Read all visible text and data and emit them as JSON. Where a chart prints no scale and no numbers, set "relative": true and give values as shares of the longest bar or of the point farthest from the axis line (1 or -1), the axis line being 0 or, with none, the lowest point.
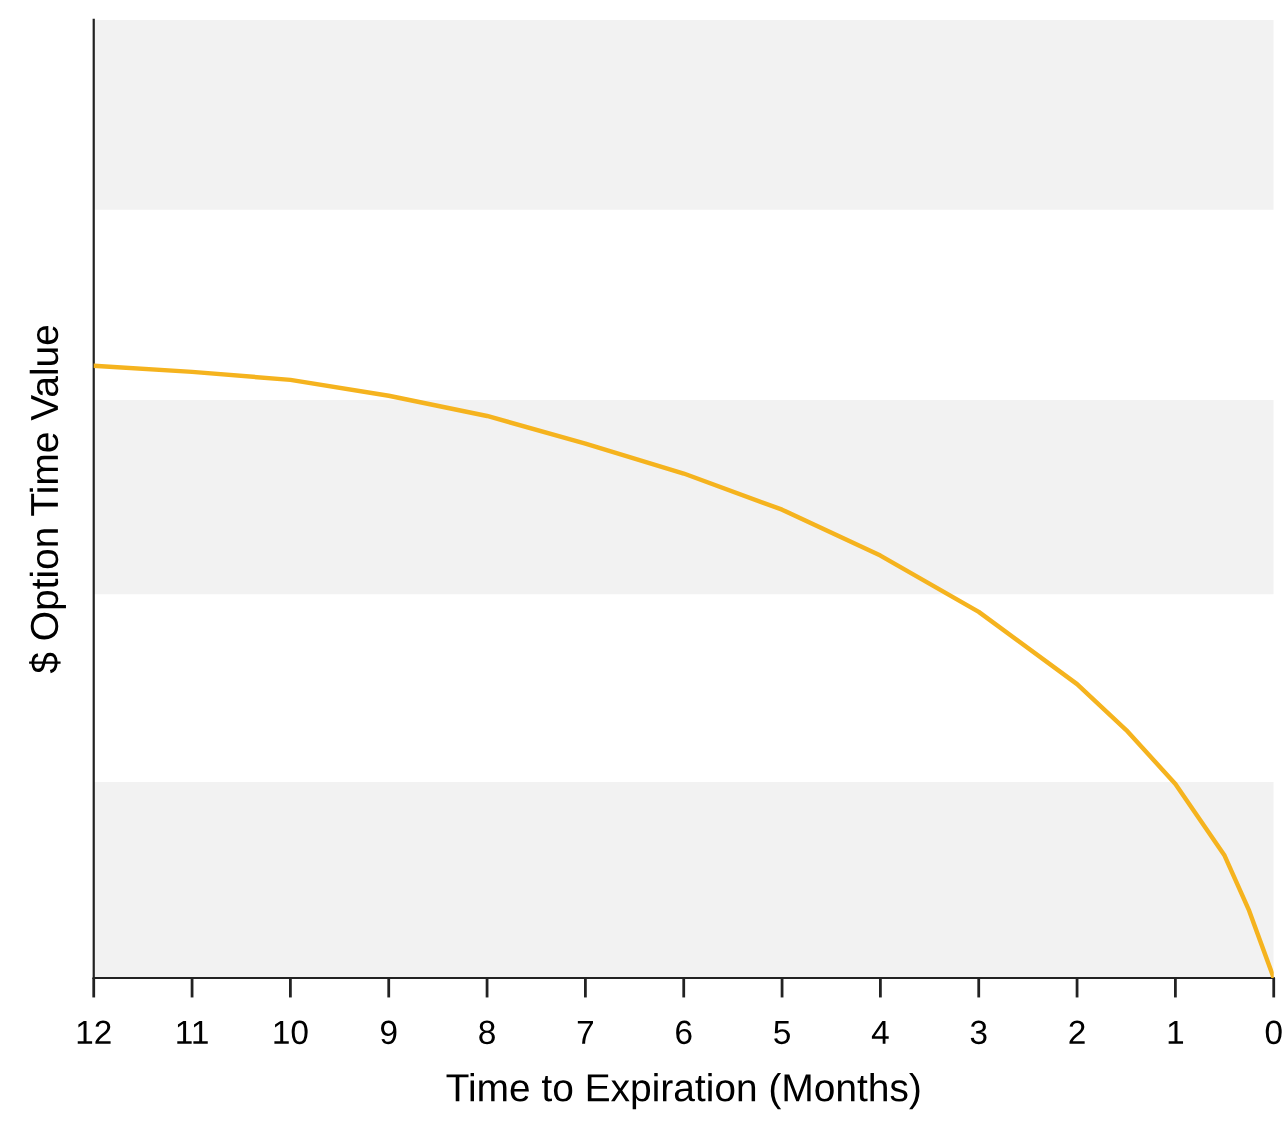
{
  "chart_data": {
    "type": "line",
    "relative": true,
    "xlabel": "Time to Expiration (Months)",
    "ylabel": "$ Option Time Value",
    "x": [
      12,
      11,
      10,
      9,
      8,
      7,
      6,
      5,
      4,
      3,
      2,
      1.5,
      1,
      0.5,
      0.25,
      0
    ],
    "series": [
      {
        "color": "#f5b31e",
        "values": [
          1.0,
          0.99,
          0.977,
          0.951,
          0.918,
          0.873,
          0.824,
          0.765,
          0.69,
          0.598,
          0.48,
          0.405,
          0.317,
          0.2,
          0.11,
          0
        ]
      }
    ],
    "xlim": [
      12,
      0
    ],
    "xticks": [
      12,
      11,
      10,
      9,
      8,
      7,
      6,
      5,
      4,
      3,
      2,
      1,
      0
    ],
    "tick_labels": "x",
    "grid": false,
    "legend": false,
    "marker": "none",
    "line_style": "solid",
    "bands": [
      {
        "axis": "y",
        "from": 0,
        "to": 0.32,
        "color": "#f2f2f2"
      },
      {
        "axis": "y",
        "from": 0.627,
        "to": 0.944,
        "color": "#f2f2f2"
      },
      {
        "axis": "y",
        "from": 1.255,
        "to": 1.565,
        "color": "#f2f2f2"
      }
    ]
  }
}
